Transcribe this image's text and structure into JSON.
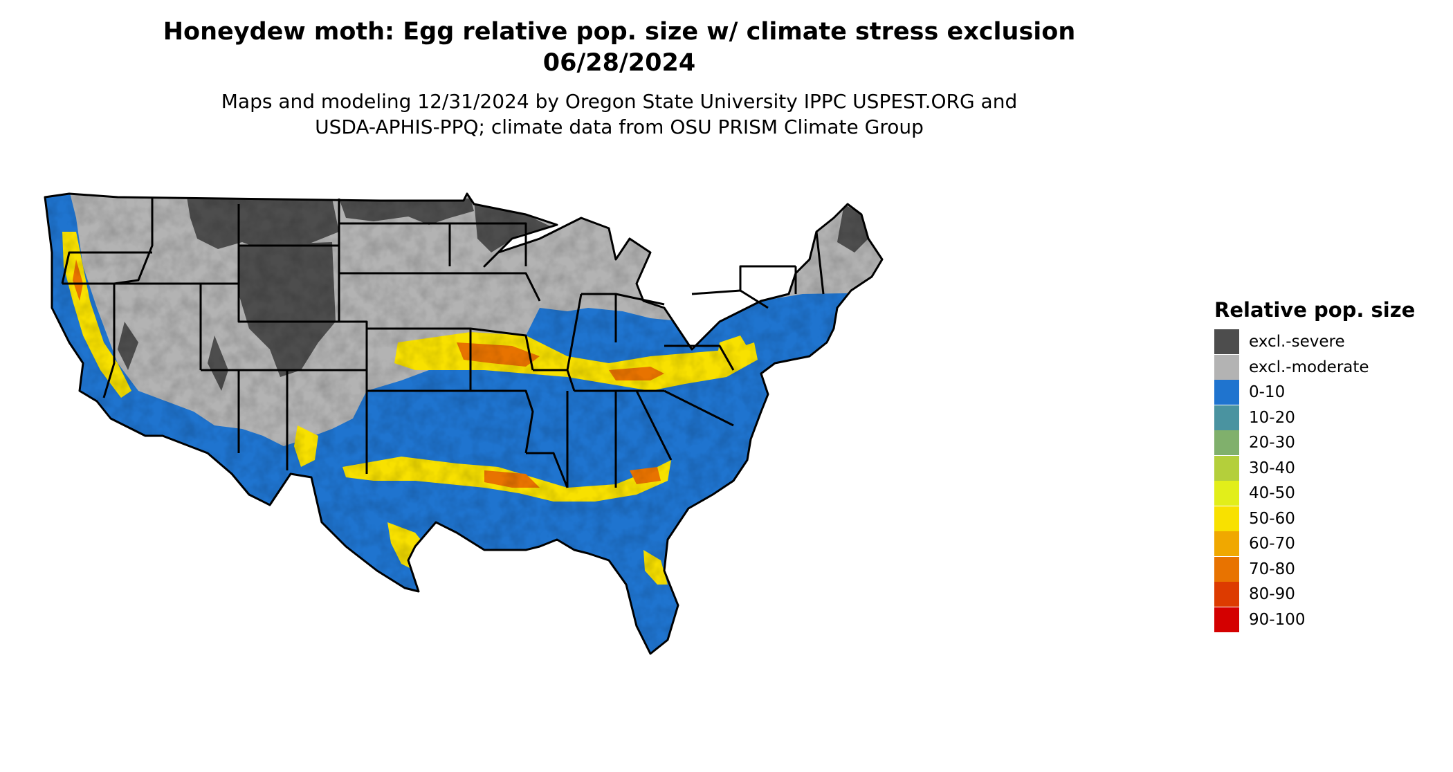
{
  "title": {
    "line1": "Honeydew moth: Egg relative pop. size w/ climate stress exclusion",
    "line2": "06/28/2024"
  },
  "subtitle": {
    "line1": "Maps and modeling 12/31/2024 by Oregon State University IPPC USPEST.ORG and",
    "line2": "USDA-APHIS-PPQ; climate data from OSU PRISM Climate Group"
  },
  "legend": {
    "title": "Relative pop. size",
    "items": [
      {
        "label": "excl.-severe",
        "color": "#4d4d4d"
      },
      {
        "label": "excl.-moderate",
        "color": "#b3b3b3"
      },
      {
        "label": "0-10",
        "color": "#1f74cf"
      },
      {
        "label": "10-20",
        "color": "#4a93a0"
      },
      {
        "label": "20-30",
        "color": "#80b06c"
      },
      {
        "label": "30-40",
        "color": "#b4cf3b"
      },
      {
        "label": "40-50",
        "color": "#e2ee1a"
      },
      {
        "label": "50-60",
        "color": "#f8e100"
      },
      {
        "label": "60-70",
        "color": "#f0a800"
      },
      {
        "label": "70-80",
        "color": "#e87300"
      },
      {
        "label": "80-90",
        "color": "#dd3b00"
      },
      {
        "label": "90-100",
        "color": "#d40000"
      }
    ]
  }
}
